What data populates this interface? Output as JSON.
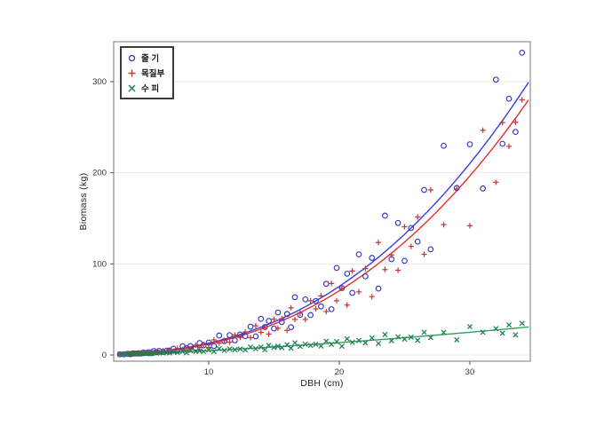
{
  "figure_title": "",
  "chart_data": {
    "type": "scatter",
    "title": "",
    "xlabel": "DBH (cm)",
    "ylabel": "Biomass (kg)",
    "x_ticks": [
      10,
      20,
      30
    ],
    "y_ticks": [
      0,
      100,
      200,
      300
    ],
    "x_range": [
      2.72,
      34.63
    ],
    "y_range": [
      -6.8,
      343.8
    ],
    "grid": "horizontal",
    "legend_position": "top-left inside",
    "style": {
      "grid_color": "#e9e9e9",
      "frame_color": "#8c8c8c",
      "tick_color": "#555555",
      "tick_label_color": "#333333",
      "background": "#ffffff"
    },
    "series": [
      {
        "name": "줄 기",
        "marker": "circle",
        "color": "#3636c4",
        "line_color": "#3b3be0",
        "fit": {
          "type": "power",
          "a": 0.0385,
          "b": 2.53,
          "x_min": 3.0,
          "x_max": 34.5
        },
        "points": [
          [
            3.2,
            0.7
          ],
          [
            3.5,
            0.8
          ],
          [
            3.8,
            1.3
          ],
          [
            4,
            0.9
          ],
          [
            4.2,
            1.9
          ],
          [
            4.4,
            1.6
          ],
          [
            4.6,
            2
          ],
          [
            4.8,
            1.6
          ],
          [
            5,
            2.8
          ],
          [
            5.2,
            2.2
          ],
          [
            5.4,
            2.9
          ],
          [
            5.6,
            2
          ],
          [
            5.8,
            4.4
          ],
          [
            6,
            3.2
          ],
          [
            6.2,
            4.5
          ],
          [
            6.5,
            3.4
          ],
          [
            6.8,
            4.9
          ],
          [
            7,
            4.5
          ],
          [
            7.3,
            6.9
          ],
          [
            7.6,
            4.7
          ],
          [
            8,
            9.6
          ],
          [
            8.3,
            7.7
          ],
          [
            8.6,
            9.8
          ],
          [
            9,
            8
          ],
          [
            9.3,
            13.2
          ],
          [
            9.6,
            10.6
          ],
          [
            10,
            13.7
          ],
          [
            10.4,
            9.8
          ],
          [
            10.8,
            21.4
          ],
          [
            11.2,
            15.3
          ],
          [
            11.6,
            21.8
          ],
          [
            12,
            16.1
          ],
          [
            12.4,
            22.5
          ],
          [
            12.8,
            20.7
          ],
          [
            13.2,
            31.1
          ],
          [
            13.6,
            20.5
          ],
          [
            14,
            39.7
          ],
          [
            14.3,
            30.7
          ],
          [
            14.6,
            37.4
          ],
          [
            15,
            29.1
          ],
          [
            15.3,
            46.7
          ],
          [
            15.6,
            36.2
          ],
          [
            16,
            45
          ],
          [
            16.3,
            30.6
          ],
          [
            16.6,
            63.5
          ],
          [
            17,
            44
          ],
          [
            17.4,
            61
          ],
          [
            17.8,
            43.8
          ],
          [
            18.2,
            59.3
          ],
          [
            18.6,
            53.3
          ],
          [
            19,
            78.1
          ],
          [
            19.4,
            50.3
          ],
          [
            19.8,
            95.6
          ],
          [
            20.2,
            73.4
          ],
          [
            20.6,
            89.3
          ],
          [
            21,
            68.2
          ],
          [
            21.5,
            110.4
          ],
          [
            22,
            86.3
          ],
          [
            22.5,
            106.6
          ],
          [
            23,
            72.9
          ],
          [
            23.5,
            153
          ],
          [
            24,
            105.2
          ],
          [
            24.5,
            144.9
          ],
          [
            25,
            103.4
          ],
          [
            25.5,
            139.4
          ],
          [
            26,
            124.4
          ],
          [
            26.5,
            181.2
          ],
          [
            27,
            116
          ],
          [
            28,
            229.6
          ],
          [
            29,
            183.3
          ],
          [
            30,
            231.2
          ],
          [
            31,
            182.7
          ],
          [
            32,
            302.2
          ],
          [
            32.5,
            231.8
          ],
          [
            33,
            281.2
          ],
          [
            33.5,
            244.8
          ],
          [
            34,
            331.7
          ]
        ]
      },
      {
        "name": "목질부",
        "marker": "plus",
        "color": "#c43a3a",
        "line_color": "#e03030",
        "fit": {
          "type": "power",
          "a": 0.036,
          "b": 2.53,
          "x_min": 3.0,
          "x_max": 34.5
        },
        "points": [
          [
            3.2,
            0.6
          ],
          [
            3.5,
            1
          ],
          [
            3.8,
            0.8
          ],
          [
            4,
            1.5
          ],
          [
            4.2,
            1.2
          ],
          [
            4.4,
            1.6
          ],
          [
            4.6,
            1.2
          ],
          [
            4.8,
            2.2
          ],
          [
            5,
            1.7
          ],
          [
            5.2,
            2.5
          ],
          [
            5.4,
            1.7
          ],
          [
            5.6,
            3.5
          ],
          [
            5.8,
            2.7
          ],
          [
            6,
            3.3
          ],
          [
            6.2,
            2.9
          ],
          [
            6.5,
            4.7
          ],
          [
            6.8,
            4.2
          ],
          [
            7,
            5.5
          ],
          [
            7.3,
            4.2
          ],
          [
            7.6,
            7.3
          ],
          [
            8,
            6
          ],
          [
            8.3,
            7.7
          ],
          [
            8.6,
            6
          ],
          [
            9,
            10.8
          ],
          [
            9.3,
            8.3
          ],
          [
            9.6,
            11.6
          ],
          [
            10,
            8.2
          ],
          [
            10.4,
            16.6
          ],
          [
            10.8,
            13.1
          ],
          [
            11.2,
            16
          ],
          [
            11.6,
            14
          ],
          [
            12,
            22
          ],
          [
            12.4,
            19.2
          ],
          [
            12.8,
            25.2
          ],
          [
            13.2,
            19
          ],
          [
            13.6,
            32
          ],
          [
            14,
            24.8
          ],
          [
            14.3,
            30.5
          ],
          [
            14.6,
            23
          ],
          [
            15,
            39.3
          ],
          [
            15.3,
            29.3
          ],
          [
            15.6,
            39.8
          ],
          [
            16,
            27
          ],
          [
            16.3,
            51.8
          ],
          [
            16.6,
            39
          ],
          [
            17,
            45.9
          ],
          [
            17.4,
            39.1
          ],
          [
            17.8,
            59.6
          ],
          [
            18.2,
            50.7
          ],
          [
            18.6,
            64.9
          ],
          [
            19,
            47.7
          ],
          [
            19.4,
            78.5
          ],
          [
            19.8,
            59.6
          ],
          [
            20.2,
            73.1
          ],
          [
            20.6,
            54.8
          ],
          [
            21,
            92.2
          ],
          [
            21.5,
            69.3
          ],
          [
            22,
            94.9
          ],
          [
            22.5,
            64
          ],
          [
            23,
            123.5
          ],
          [
            23.5,
            93.8
          ],
          [
            24,
            109.7
          ],
          [
            24.5,
            93
          ],
          [
            25,
            140.8
          ],
          [
            25.5,
            119.2
          ],
          [
            26,
            151.5
          ],
          [
            26.5,
            110.6
          ],
          [
            27,
            181.2
          ],
          [
            28,
            143
          ],
          [
            29,
            182.3
          ],
          [
            30,
            141.9
          ],
          [
            31,
            246.7
          ],
          [
            32,
            189.5
          ],
          [
            32.5,
            255
          ],
          [
            33,
            229
          ],
          [
            33.5,
            255.4
          ],
          [
            34,
            280
          ]
        ]
      },
      {
        "name": "수 피",
        "marker": "x",
        "color": "#1f7d54",
        "line_color": "#2fa35c",
        "fit": {
          "type": "power",
          "a": 0.152,
          "b": 1.5,
          "x_min": 3.0,
          "x_max": 34.5
        },
        "points": [
          [
            3.2,
            0.9
          ],
          [
            3.5,
            0.8
          ],
          [
            3.8,
            1.4
          ],
          [
            4,
            1.1
          ],
          [
            4.2,
            1.4
          ],
          [
            4.4,
            1
          ],
          [
            4.6,
            1.9
          ],
          [
            4.8,
            1.5
          ],
          [
            5,
            1.8
          ],
          [
            5.2,
            1.5
          ],
          [
            5.4,
            2.2
          ],
          [
            5.6,
            1.5
          ],
          [
            5.8,
            2.8
          ],
          [
            6,
            2
          ],
          [
            6.2,
            2.5
          ],
          [
            6.5,
            2.3
          ],
          [
            6.8,
            2.7
          ],
          [
            7,
            2.3
          ],
          [
            7.3,
            3.6
          ],
          [
            7.6,
            2.9
          ],
          [
            8,
            3.8
          ],
          [
            8.3,
            2.5
          ],
          [
            8.6,
            4.8
          ],
          [
            9,
            3.9
          ],
          [
            9.3,
            4.5
          ],
          [
            9.6,
            3.8
          ],
          [
            10,
            5.5
          ],
          [
            10.4,
            3.8
          ],
          [
            10.8,
            7
          ],
          [
            11.2,
            5
          ],
          [
            11.6,
            6.5
          ],
          [
            12,
            5.8
          ],
          [
            12.4,
            6.6
          ],
          [
            12.8,
            5.6
          ],
          [
            13.2,
            8.7
          ],
          [
            13.6,
            6.9
          ],
          [
            14,
            8.8
          ],
          [
            14.3,
            5.8
          ],
          [
            14.6,
            10.6
          ],
          [
            15,
            8.4
          ],
          [
            15.3,
            9.6
          ],
          [
            15.6,
            8
          ],
          [
            16,
            11.2
          ],
          [
            16.3,
            7.5
          ],
          [
            16.6,
            13.4
          ],
          [
            17,
            9.4
          ],
          [
            17.4,
            11.9
          ],
          [
            17.8,
            10.5
          ],
          [
            18.2,
            11.8
          ],
          [
            18.6,
            9.8
          ],
          [
            19,
            15.1
          ],
          [
            19.4,
            11.7
          ],
          [
            19.8,
            14.7
          ],
          [
            20.2,
            9.7
          ],
          [
            20.6,
            17.8
          ],
          [
            21,
            13.9
          ],
          [
            21.5,
            15.9
          ],
          [
            22,
            13.3
          ],
          [
            22.5,
            18.7
          ],
          [
            23,
            12.6
          ],
          [
            23.5,
            22.5
          ],
          [
            24,
            15.7
          ],
          [
            24.5,
            19.9
          ],
          [
            25,
            17.5
          ],
          [
            25.5,
            19.6
          ],
          [
            26,
            16.1
          ],
          [
            26.5,
            24.9
          ],
          [
            27,
            19.2
          ],
          [
            28,
            24.8
          ],
          [
            29,
            16.6
          ],
          [
            30,
            31.2
          ],
          [
            31,
            24.9
          ],
          [
            32,
            28.9
          ],
          [
            32.5,
            23.9
          ],
          [
            33,
            33.1
          ],
          [
            33.5,
            22.1
          ],
          [
            34,
            34.7
          ]
        ]
      }
    ]
  }
}
